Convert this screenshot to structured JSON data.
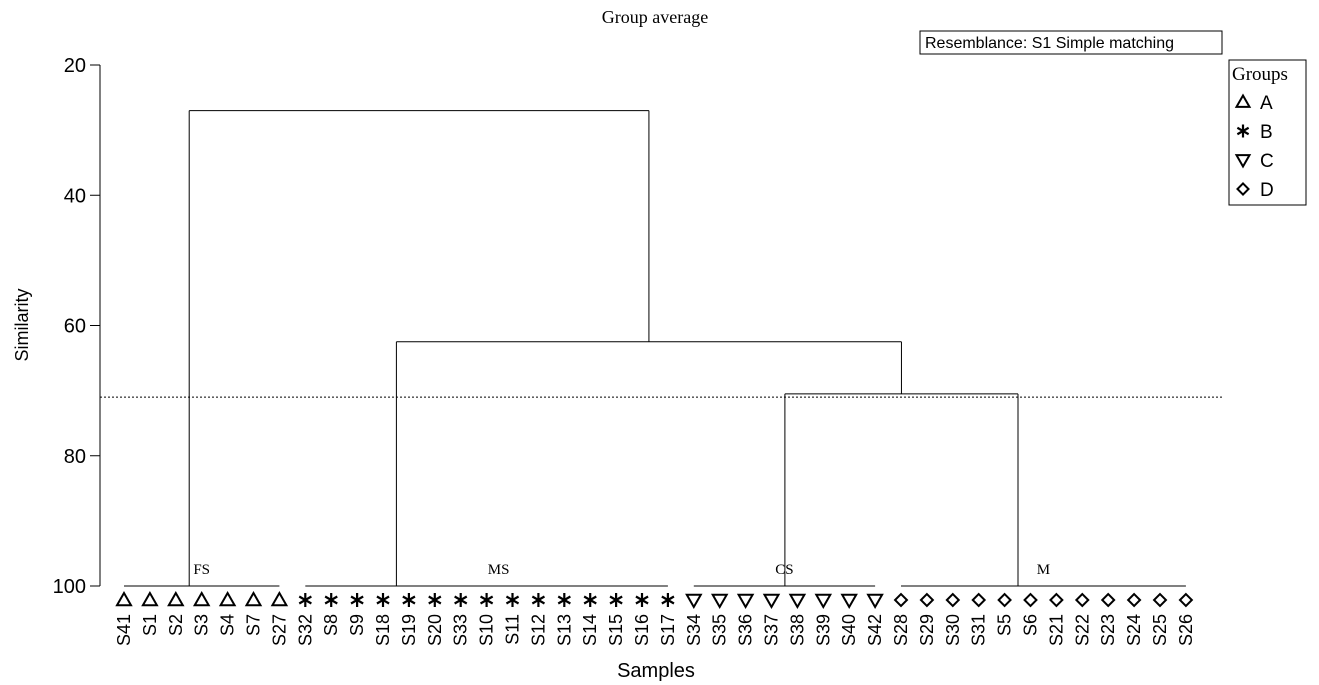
{
  "chart_data": {
    "type": "dendrogram",
    "title": "Group average",
    "resemblance": "Resemblance: S1 Simple matching",
    "xlabel": "Samples",
    "ylabel": "Similarity",
    "ylim": [
      20,
      100
    ],
    "yticks": [
      20,
      40,
      60,
      80,
      100
    ],
    "cut_similarity": 71,
    "legend": {
      "title": "Groups",
      "position": "right",
      "items": [
        {
          "label": "A",
          "symbol": "triangle-up"
        },
        {
          "label": "B",
          "symbol": "asterisk"
        },
        {
          "label": "C",
          "symbol": "triangle-down"
        },
        {
          "label": "D",
          "symbol": "diamond"
        }
      ]
    },
    "samples": [
      {
        "name": "S41",
        "group": "A"
      },
      {
        "name": "S1",
        "group": "A"
      },
      {
        "name": "S2",
        "group": "A"
      },
      {
        "name": "S3",
        "group": "A"
      },
      {
        "name": "S4",
        "group": "A"
      },
      {
        "name": "S7",
        "group": "A"
      },
      {
        "name": "S27",
        "group": "A"
      },
      {
        "name": "S32",
        "group": "B"
      },
      {
        "name": "S8",
        "group": "B"
      },
      {
        "name": "S9",
        "group": "B"
      },
      {
        "name": "S18",
        "group": "B"
      },
      {
        "name": "S19",
        "group": "B"
      },
      {
        "name": "S20",
        "group": "B"
      },
      {
        "name": "S33",
        "group": "B"
      },
      {
        "name": "S10",
        "group": "B"
      },
      {
        "name": "S11",
        "group": "B"
      },
      {
        "name": "S12",
        "group": "B"
      },
      {
        "name": "S13",
        "group": "B"
      },
      {
        "name": "S14",
        "group": "B"
      },
      {
        "name": "S15",
        "group": "B"
      },
      {
        "name": "S16",
        "group": "B"
      },
      {
        "name": "S17",
        "group": "B"
      },
      {
        "name": "S34",
        "group": "C"
      },
      {
        "name": "S35",
        "group": "C"
      },
      {
        "name": "S36",
        "group": "C"
      },
      {
        "name": "S37",
        "group": "C"
      },
      {
        "name": "S38",
        "group": "C"
      },
      {
        "name": "S39",
        "group": "C"
      },
      {
        "name": "S40",
        "group": "C"
      },
      {
        "name": "S42",
        "group": "C"
      },
      {
        "name": "S28",
        "group": "D"
      },
      {
        "name": "S29",
        "group": "D"
      },
      {
        "name": "S30",
        "group": "D"
      },
      {
        "name": "S31",
        "group": "D"
      },
      {
        "name": "S5",
        "group": "D"
      },
      {
        "name": "S6",
        "group": "D"
      },
      {
        "name": "S21",
        "group": "D"
      },
      {
        "name": "S22",
        "group": "D"
      },
      {
        "name": "S23",
        "group": "D"
      },
      {
        "name": "S24",
        "group": "D"
      },
      {
        "name": "S25",
        "group": "D"
      },
      {
        "name": "S26",
        "group": "D"
      }
    ],
    "clusters": [
      {
        "label": "FS",
        "first": 0,
        "last": 6,
        "similarity": 100,
        "stem_sample": 3
      },
      {
        "label": "MS",
        "first": 7,
        "last": 21,
        "similarity": 100,
        "stem_sample": 11
      },
      {
        "label": "CS",
        "first": 22,
        "last": 29,
        "similarity": 100,
        "stem_sample": 26
      },
      {
        "label": "M",
        "first": 30,
        "last": 41,
        "similarity": 100,
        "stem_sample": 35
      }
    ],
    "merges": [
      {
        "children": [
          "CS",
          "M"
        ],
        "similarity": 70.5
      },
      {
        "children": [
          "MS",
          "CS+M"
        ],
        "similarity": 62.5
      },
      {
        "children": [
          "FS",
          "MS+CS+M"
        ],
        "similarity": 27
      }
    ]
  }
}
